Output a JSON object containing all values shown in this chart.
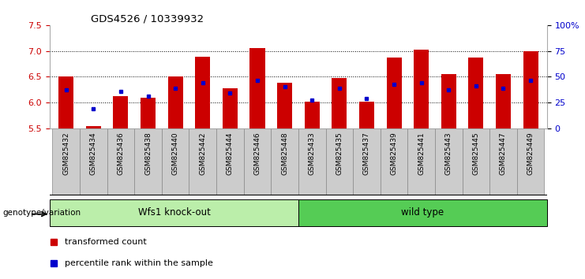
{
  "title": "GDS4526 / 10339932",
  "samples": [
    "GSM825432",
    "GSM825434",
    "GSM825436",
    "GSM825438",
    "GSM825440",
    "GSM825442",
    "GSM825444",
    "GSM825446",
    "GSM825448",
    "GSM825433",
    "GSM825435",
    "GSM825437",
    "GSM825439",
    "GSM825441",
    "GSM825443",
    "GSM825445",
    "GSM825447",
    "GSM825449"
  ],
  "red_values": [
    6.5,
    5.55,
    6.12,
    6.1,
    6.5,
    6.88,
    6.27,
    7.05,
    6.38,
    6.02,
    6.47,
    6.02,
    6.87,
    7.03,
    6.55,
    6.87,
    6.55,
    7.0
  ],
  "blue_values": [
    6.25,
    5.88,
    6.22,
    6.12,
    6.28,
    6.38,
    6.18,
    6.43,
    6.3,
    6.05,
    6.27,
    6.08,
    6.35,
    6.38,
    6.25,
    6.32,
    6.27,
    6.43
  ],
  "ymin": 5.5,
  "ymax": 7.5,
  "bar_color": "#cc0000",
  "dot_color": "#0000cc",
  "bar_width": 0.55,
  "group1_label": "Wfs1 knock-out",
  "group2_label": "wild type",
  "group1_color": "#bbeeaa",
  "group2_color": "#55cc55",
  "xlabel_text": "genotype/variation",
  "yticks_left": [
    5.5,
    6.0,
    6.5,
    7.0,
    7.5
  ],
  "yticks_right_vals": [
    0,
    25,
    50,
    75,
    100
  ],
  "yticks_right_labels": [
    "0",
    "25",
    "50",
    "75",
    "100%"
  ],
  "dotted_lines": [
    6.0,
    6.5,
    7.0
  ],
  "legend_red": "transformed count",
  "legend_blue": "percentile rank within the sample",
  "n_group1": 9,
  "n_group2": 9,
  "tick_bg_color": "#cccccc",
  "tick_border_color": "#888888"
}
